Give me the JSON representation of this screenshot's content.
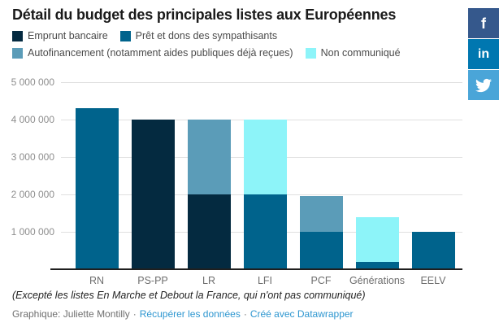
{
  "header": {
    "title": "Détail du budget des principales listes aux Européennes"
  },
  "social": [
    {
      "name": "facebook",
      "label": "f",
      "color": "#35588c"
    },
    {
      "name": "linkedin",
      "label": "in",
      "color": "#0077b0"
    },
    {
      "name": "twitter",
      "icon": "twitter-bird",
      "color": "#4aa5d8"
    }
  ],
  "chart_data": {
    "type": "bar",
    "stacked": true,
    "title": "Détail du budget des principales listes aux Européennes",
    "categories": [
      "RN",
      "PS-PP",
      "LR",
      "LFI",
      "PCF",
      "Générations",
      "EELV"
    ],
    "series": [
      {
        "name": "Emprunt bancaire",
        "color": "#042a40",
        "values": [
          0,
          4000000,
          2000000,
          0,
          0,
          0,
          0
        ]
      },
      {
        "name": "Prêt et dons des sympathisants",
        "color": "#00638c",
        "values": [
          4300000,
          0,
          0,
          2000000,
          1000000,
          200000,
          1000000
        ]
      },
      {
        "name": "Autofinancement (notamment aides publiques déjà reçues)",
        "color": "#5b9cb8",
        "values": [
          0,
          0,
          2000000,
          0,
          950000,
          0,
          0
        ]
      },
      {
        "name": "Non communiqué",
        "color": "#8df4f9",
        "values": [
          0,
          0,
          0,
          2000000,
          0,
          1200000,
          0
        ]
      }
    ],
    "yticks": [
      {
        "value": 1000000,
        "label": "1 000 000"
      },
      {
        "value": 2000000,
        "label": "2 000 000"
      },
      {
        "value": 3000000,
        "label": "3 000 000"
      },
      {
        "value": 4000000,
        "label": "4 000 000"
      },
      {
        "value": 5000000,
        "label": "5 000 000"
      }
    ],
    "ylim": [
      0,
      5000000
    ],
    "xlabel": "",
    "ylabel": "",
    "grid": "horizontal",
    "legend_position": "top"
  },
  "footnote": "(Excepté les listes En Marche et Debout la France, qui n'ont pas communiqué)",
  "byline": {
    "credit": "Graphique: Juliette Montilly",
    "separator": "·",
    "links": [
      "Récupérer les données",
      "Créé avec Datawrapper"
    ]
  }
}
